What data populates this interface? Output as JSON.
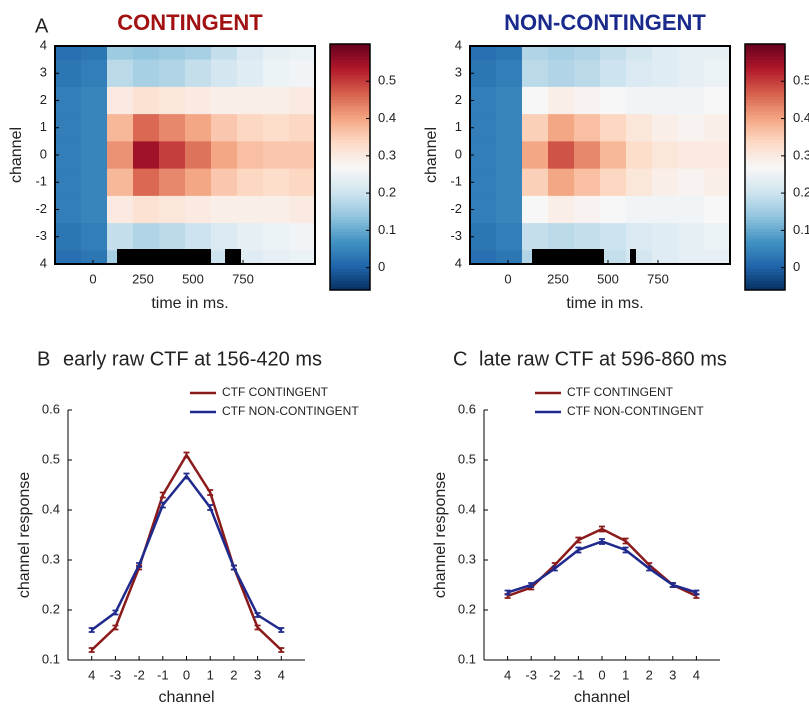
{
  "chart_data": [
    {
      "type": "heatmap",
      "panel_label": "A",
      "title": "CONTINGENT",
      "title_color": "#a31212",
      "xlabel": "time in ms.",
      "ylabel": "channel",
      "bins": [
        -190,
        -60,
        70,
        200,
        330,
        460,
        590,
        720,
        850,
        980,
        1110
      ],
      "y": [
        4,
        3,
        2,
        1,
        0,
        -1,
        -2,
        -3,
        -4
      ],
      "values": [
        [
          0.02,
          0.03,
          0.15,
          0.14,
          0.15,
          0.16,
          0.19,
          0.22,
          0.24,
          0.25
        ],
        [
          0.03,
          0.04,
          0.18,
          0.16,
          0.17,
          0.19,
          0.21,
          0.23,
          0.25,
          0.26
        ],
        [
          0.04,
          0.05,
          0.3,
          0.32,
          0.31,
          0.3,
          0.29,
          0.29,
          0.29,
          0.3
        ],
        [
          0.04,
          0.05,
          0.38,
          0.46,
          0.43,
          0.4,
          0.36,
          0.34,
          0.33,
          0.34
        ],
        [
          0.04,
          0.05,
          0.42,
          0.55,
          0.5,
          0.45,
          0.4,
          0.37,
          0.36,
          0.36
        ],
        [
          0.04,
          0.05,
          0.38,
          0.46,
          0.43,
          0.4,
          0.36,
          0.34,
          0.33,
          0.34
        ],
        [
          0.04,
          0.05,
          0.3,
          0.32,
          0.31,
          0.3,
          0.29,
          0.29,
          0.29,
          0.3
        ],
        [
          0.03,
          0.04,
          0.19,
          0.17,
          0.18,
          0.2,
          0.22,
          0.24,
          0.25,
          0.26
        ],
        [
          0.02,
          0.03,
          0.16,
          0.15,
          0.16,
          0.17,
          0.2,
          0.23,
          0.24,
          0.25
        ]
      ],
      "significant": [
        [
          120,
          590
        ],
        [
          660,
          740
        ]
      ],
      "xlim": [
        -190,
        1110
      ],
      "xticks": [
        0,
        250,
        500,
        750
      ],
      "ylim": [
        -4,
        4
      ],
      "yticks": [
        4,
        3,
        2,
        1,
        0,
        -1,
        -2,
        -3,
        {
          "value": -4,
          "label": "4"
        }
      ],
      "clim": [
        -0.06,
        0.6
      ],
      "cticks": [
        0,
        0.1,
        0.2,
        0.3,
        0.4,
        0.5
      ],
      "colormap": [
        "#053061",
        "#2166ac",
        "#4393c3",
        "#92c5de",
        "#d1e5f0",
        "#f7f7f7",
        "#fddbc7",
        "#f4a582",
        "#d6604d",
        "#b2182b",
        "#67001f"
      ]
    },
    {
      "type": "heatmap",
      "title": "NON-CONTINGENT",
      "title_color": "#1a2a8c",
      "xlabel": "time in ms.",
      "ylabel": "channel",
      "bins": [
        -190,
        -60,
        70,
        200,
        330,
        460,
        590,
        720,
        850,
        980,
        1110
      ],
      "y": [
        4,
        3,
        2,
        1,
        0,
        -1,
        -2,
        -3,
        -4
      ],
      "values": [
        [
          0.02,
          0.03,
          0.17,
          0.16,
          0.17,
          0.19,
          0.21,
          0.23,
          0.24,
          0.24
        ],
        [
          0.03,
          0.04,
          0.18,
          0.17,
          0.18,
          0.2,
          0.22,
          0.23,
          0.24,
          0.25
        ],
        [
          0.04,
          0.05,
          0.27,
          0.29,
          0.28,
          0.27,
          0.26,
          0.26,
          0.26,
          0.27
        ],
        [
          0.04,
          0.05,
          0.35,
          0.4,
          0.37,
          0.34,
          0.31,
          0.29,
          0.28,
          0.29
        ],
        [
          0.04,
          0.05,
          0.4,
          0.48,
          0.43,
          0.38,
          0.33,
          0.31,
          0.3,
          0.3
        ],
        [
          0.04,
          0.05,
          0.35,
          0.4,
          0.37,
          0.34,
          0.31,
          0.29,
          0.28,
          0.29
        ],
        [
          0.04,
          0.05,
          0.27,
          0.29,
          0.28,
          0.27,
          0.26,
          0.26,
          0.26,
          0.27
        ],
        [
          0.03,
          0.04,
          0.19,
          0.18,
          0.19,
          0.2,
          0.22,
          0.23,
          0.24,
          0.25
        ],
        [
          0.02,
          0.03,
          0.17,
          0.17,
          0.18,
          0.19,
          0.21,
          0.23,
          0.24,
          0.24
        ]
      ],
      "significant": [
        [
          120,
          480
        ],
        [
          610,
          640
        ]
      ],
      "xlim": [
        -190,
        1110
      ],
      "xticks": [
        0,
        250,
        500,
        750
      ],
      "ylim": [
        -4,
        4
      ],
      "yticks": [
        4,
        3,
        2,
        1,
        0,
        -1,
        -2,
        -3,
        {
          "value": -4,
          "label": "4"
        }
      ],
      "clim": [
        -0.06,
        0.6
      ],
      "cticks": [
        0,
        0.1,
        0.2,
        0.3,
        0.4,
        0.5
      ],
      "colormap": [
        "#053061",
        "#2166ac",
        "#4393c3",
        "#92c5de",
        "#d1e5f0",
        "#f7f7f7",
        "#fddbc7",
        "#f4a582",
        "#d6604d",
        "#b2182b",
        "#67001f"
      ]
    },
    {
      "type": "line",
      "panel_label": "B",
      "title": "early raw CTF at 156-420 ms",
      "xlabel": "channel",
      "ylabel": "channel response",
      "categories": [
        "4",
        "-3",
        "-2",
        "-1",
        "0",
        "1",
        "2",
        "3",
        "4"
      ],
      "series": [
        {
          "name": "CTF CONTINGENT",
          "color": "#8b1a1a",
          "values": [
            0.12,
            0.165,
            0.285,
            0.43,
            0.51,
            0.435,
            0.285,
            0.165,
            0.12
          ],
          "errors": [
            0.004,
            0.004,
            0.004,
            0.005,
            0.005,
            0.005,
            0.004,
            0.004,
            0.004
          ]
        },
        {
          "name": "CTF NON-CONTINGENT",
          "color": "#1f2a8c",
          "values": [
            0.16,
            0.195,
            0.29,
            0.41,
            0.468,
            0.405,
            0.285,
            0.19,
            0.16
          ],
          "errors": [
            0.004,
            0.004,
            0.004,
            0.005,
            0.005,
            0.005,
            0.004,
            0.004,
            0.004
          ]
        }
      ],
      "ylim": [
        0.1,
        0.6
      ],
      "yticks": [
        0.1,
        0.2,
        0.3,
        0.4,
        0.5,
        0.6
      ],
      "legend": "upper right"
    },
    {
      "type": "line",
      "panel_label": "C",
      "title": "late raw CTF at 596-860 ms",
      "xlabel": "channel",
      "ylabel": "channel response",
      "categories": [
        "4",
        "-3",
        "-2",
        "-1",
        "0",
        "1",
        "2",
        "3",
        "4"
      ],
      "series": [
        {
          "name": "CTF CONTINGENT",
          "color": "#8b1a1a",
          "values": [
            0.228,
            0.245,
            0.29,
            0.34,
            0.362,
            0.338,
            0.29,
            0.25,
            0.228
          ],
          "errors": [
            0.004,
            0.004,
            0.004,
            0.005,
            0.005,
            0.005,
            0.004,
            0.004,
            0.004
          ]
        },
        {
          "name": "CTF NON-CONTINGENT",
          "color": "#1f2a8c",
          "values": [
            0.235,
            0.25,
            0.283,
            0.32,
            0.337,
            0.32,
            0.283,
            0.25,
            0.235
          ],
          "errors": [
            0.004,
            0.004,
            0.004,
            0.005,
            0.005,
            0.005,
            0.004,
            0.004,
            0.004
          ]
        }
      ],
      "ylim": [
        0.1,
        0.6
      ],
      "yticks": [
        0.1,
        0.2,
        0.3,
        0.4,
        0.5,
        0.6
      ],
      "legend": "upper left"
    }
  ]
}
